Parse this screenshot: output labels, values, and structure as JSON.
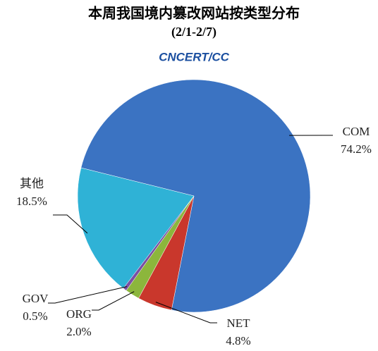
{
  "chart_data": {
    "type": "pie",
    "title": "本周我国境内篡改网站按类型分布",
    "subtitle": "(2/1-2/7)",
    "logo": "CNCERT/CC",
    "categories": [
      "COM",
      "NET",
      "ORG",
      "GOV",
      "其他"
    ],
    "values": [
      74.2,
      4.8,
      2.0,
      0.5,
      18.5
    ],
    "value_labels": [
      "74.2%",
      "4.8%",
      "2.0%",
      "0.5%",
      "18.5%"
    ],
    "colors": [
      "#3b73c2",
      "#c9372c",
      "#8cb63c",
      "#7b4fa3",
      "#2fb2d6"
    ]
  }
}
